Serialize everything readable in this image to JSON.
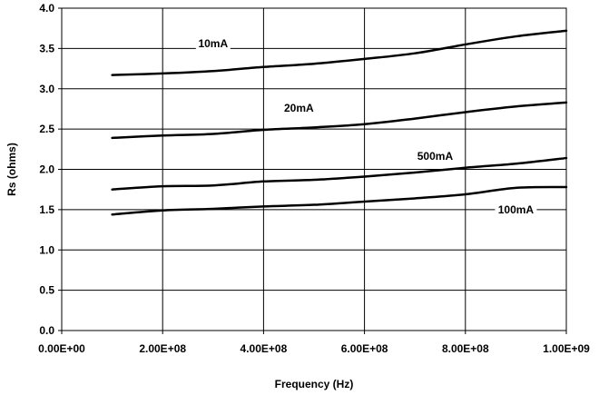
{
  "chart_data": {
    "type": "line",
    "title": "",
    "xlabel": "Frequency (Hz)",
    "ylabel": "Rs (ohms)",
    "xlim": [
      0,
      1000000000
    ],
    "ylim": [
      0,
      4.0
    ],
    "x_ticks": [
      0,
      200000000,
      400000000,
      600000000,
      800000000,
      1000000000
    ],
    "x_tick_labels": [
      "0.00E+00",
      "2.00E+08",
      "4.00E+08",
      "6.00E+08",
      "8.00E+08",
      "1.00E+09"
    ],
    "y_ticks": [
      0,
      0.5,
      1.0,
      1.5,
      2.0,
      2.5,
      3.0,
      3.5,
      4.0
    ],
    "y_tick_labels": [
      "0.0",
      "0.5",
      "1.0",
      "1.5",
      "2.0",
      "2.5",
      "3.0",
      "3.5",
      "4.0"
    ],
    "grid": true,
    "legend": "inline labels",
    "line_color": "#000000",
    "x": [
      100000000,
      200000000,
      300000000,
      400000000,
      500000000,
      600000000,
      700000000,
      800000000,
      900000000,
      1000000000
    ],
    "series": [
      {
        "name": "10mA",
        "values": [
          3.17,
          3.19,
          3.22,
          3.27,
          3.31,
          3.37,
          3.44,
          3.55,
          3.65,
          3.72
        ],
        "label_at": [
          300000000,
          3.55
        ]
      },
      {
        "name": "20mA",
        "values": [
          2.39,
          2.42,
          2.44,
          2.49,
          2.52,
          2.56,
          2.63,
          2.71,
          2.78,
          2.83
        ],
        "label_at": [
          470000000,
          2.75
        ]
      },
      {
        "name": "500mA",
        "values": [
          1.75,
          1.79,
          1.8,
          1.85,
          1.87,
          1.91,
          1.96,
          2.02,
          2.07,
          2.14
        ],
        "label_at": [
          740000000,
          2.15
        ]
      },
      {
        "name": "100mA",
        "values": [
          1.44,
          1.49,
          1.51,
          1.54,
          1.56,
          1.6,
          1.64,
          1.69,
          1.77,
          1.78
        ],
        "label_at": [
          900000000,
          1.49
        ]
      }
    ]
  }
}
